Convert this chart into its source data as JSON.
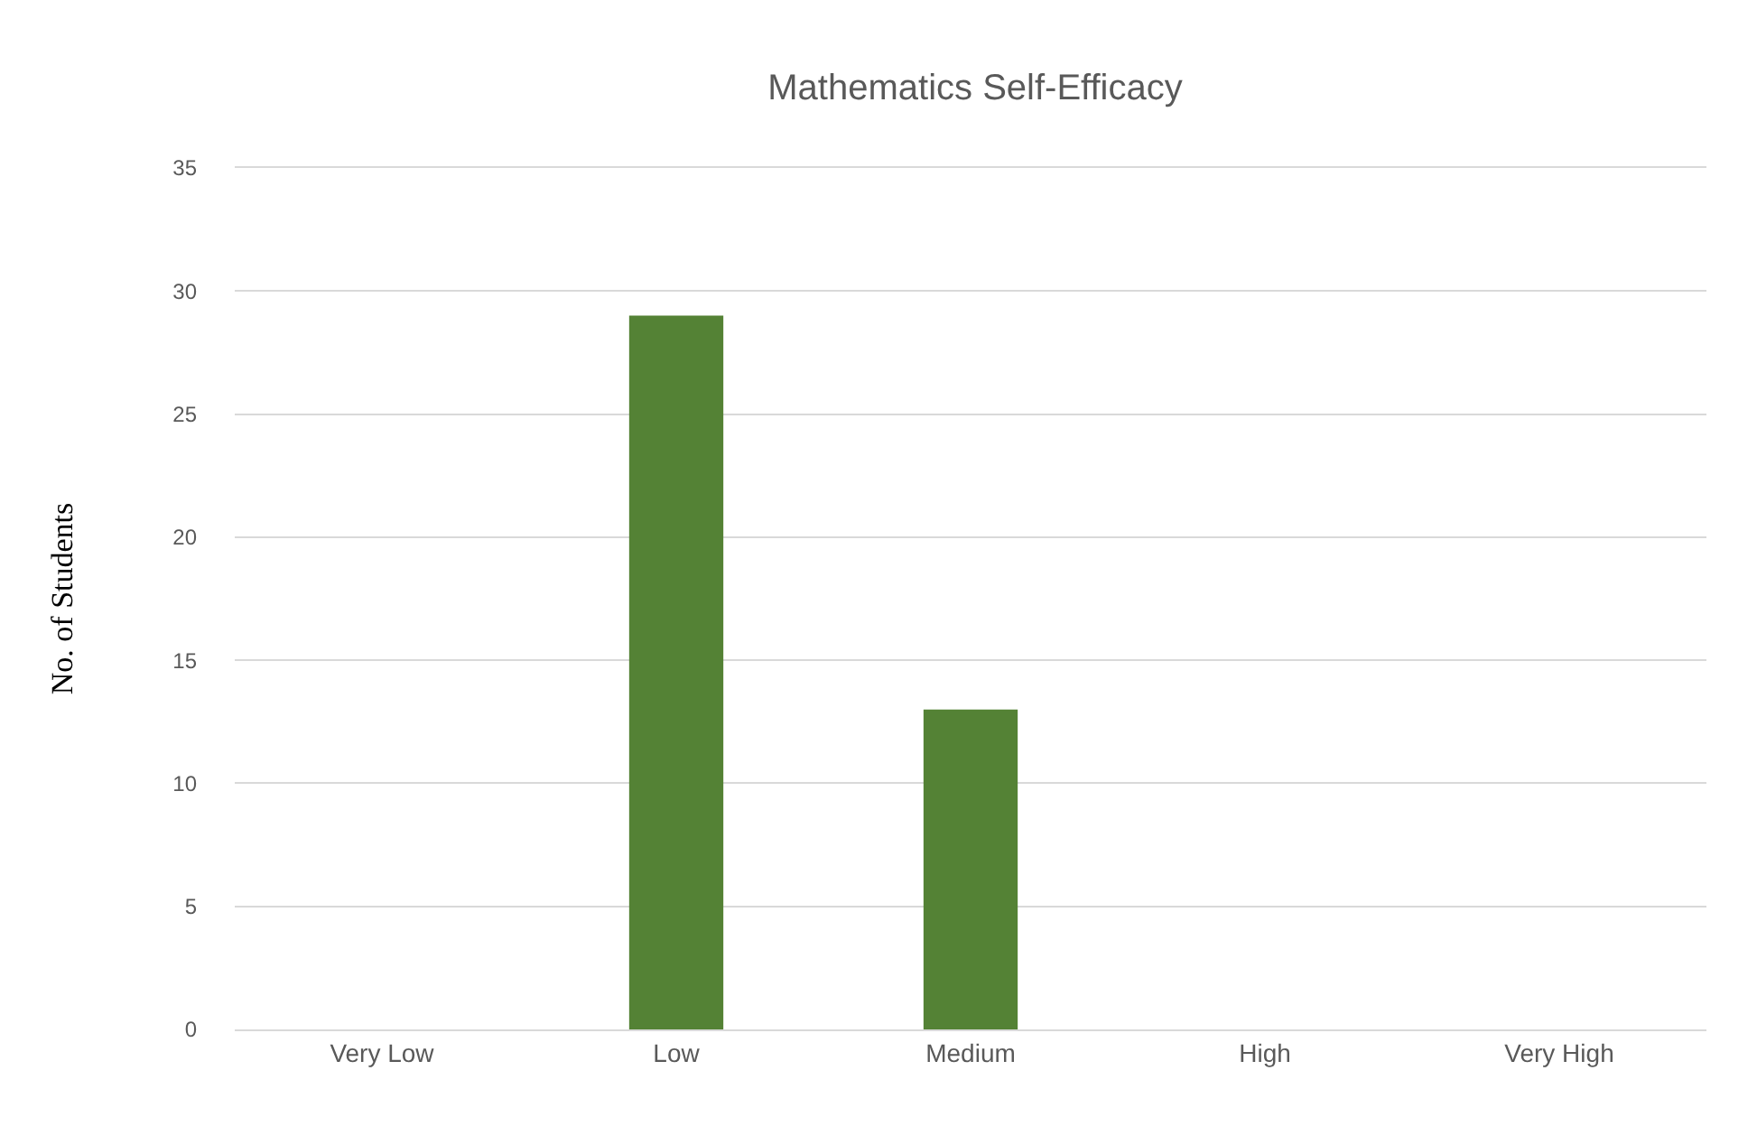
{
  "chart_data": {
    "type": "bar",
    "title": "Mathematics Self-Efficacy",
    "ylabel": "No. of Students",
    "categories": [
      "Very Low",
      "Low",
      "Medium",
      "High",
      "Very High"
    ],
    "values": [
      0,
      29,
      13,
      0,
      0
    ],
    "color": "#548235",
    "ylim": [
      0,
      35
    ],
    "yticks": [
      0,
      5,
      10,
      15,
      20,
      25,
      30,
      35
    ],
    "grid": "y",
    "legend": false
  }
}
